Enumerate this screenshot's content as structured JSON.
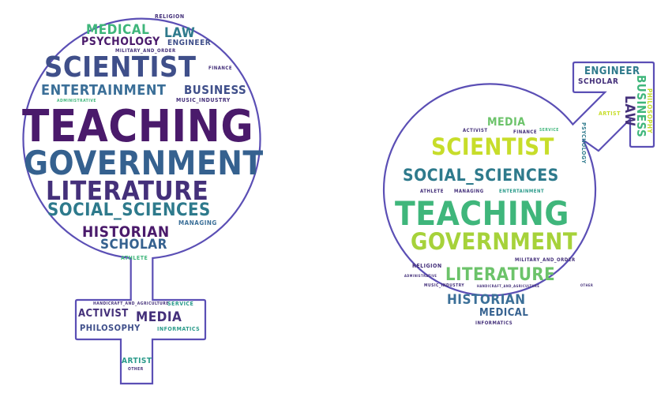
{
  "colors": {
    "outline": "#5b4fb5",
    "deep_purple": "#4a1a6b",
    "purple": "#44307a",
    "indigo": "#3f4f8a",
    "blue": "#35618f",
    "teal_blue": "#2e7a8c",
    "teal": "#2a9a8a",
    "green": "#3fb67b",
    "light_green": "#6cc36a",
    "yellow_green": "#a6d23a",
    "lime": "#c7dd2a",
    "mid_blue": "#3b6f98"
  },
  "female_cloud": {
    "words": {
      "teaching": "TEACHING",
      "government": "GOVERNMENT",
      "literature": "LITERATURE",
      "scientist": "SCIENTIST",
      "social_sciences": "SOCIAL_SCIENCES",
      "entertainment": "ENTERTAINMENT",
      "business": "BUSINESS",
      "historian": "HISTORIAN",
      "scholar": "SCHOLAR",
      "medical": "MEDICAL",
      "law": "LAW",
      "psychology": "PSYCHOLOGY",
      "engineer": "ENGINEER",
      "religion": "RELIGION",
      "military_and_order": "MILITARY_AND_ORDER",
      "finance": "FINANCE",
      "administrative": "ADMINISTRATIVE",
      "music_industry": "MUSIC_INDUSTRY",
      "managing": "MANAGING",
      "athlete": "ATHLETE",
      "handicraft_and_agriculture": "HANDICRAFT_AND_AGRICULTURE",
      "service": "SERVICE",
      "activist": "ACTIVIST",
      "media": "MEDIA",
      "philosophy": "PHILOSOPHY",
      "informatics": "INFORMATICS",
      "artist": "ARTIST",
      "other": "OTHER"
    }
  },
  "male_cloud": {
    "words": {
      "teaching": "TEACHING",
      "government": "GOVERNMENT",
      "scientist": "SCIENTIST",
      "social_sciences": "SOCIAL_SCIENCES",
      "literature": "LITERATURE",
      "historian": "HISTORIAN",
      "medical": "MEDICAL",
      "media": "MEDIA",
      "engineer": "ENGINEER",
      "scholar": "SCHOLAR",
      "law": "LAW",
      "business": "BUSINESS",
      "philosophy": "PHILOSOPHY",
      "artist": "ARTIST",
      "psychology": "PSYCHOLOGY",
      "activist": "ACTIVIST",
      "finance": "FINANCE",
      "service": "SERVICE",
      "athlete": "ATHLETE",
      "managing": "MANAGING",
      "entertainment": "ENTERTAINMENT",
      "military_and_order": "MILITARY_AND_ORDER",
      "religion": "RELIGION",
      "administrative": "ADMINISTRATIVE",
      "music_industry": "MUSIC_INDUSTRY",
      "handicraft_and_agriculture": "HANDICRAFT_AND_AGRICULTURE",
      "informatics": "INFORMATICS",
      "other": "OTHER"
    }
  }
}
